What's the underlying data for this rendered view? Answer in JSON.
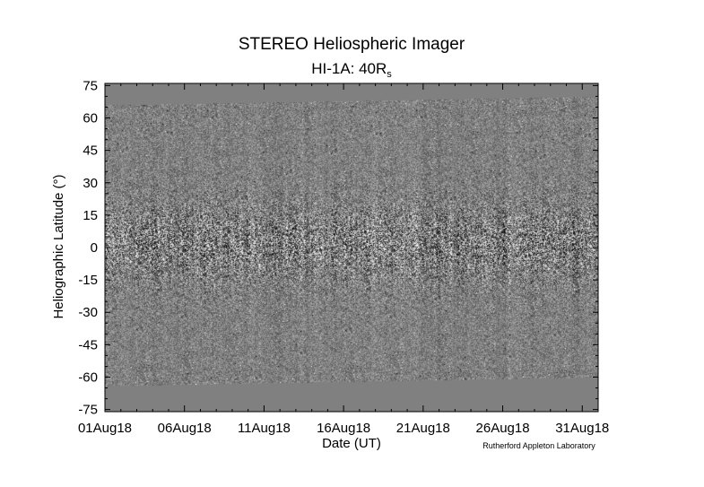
{
  "chart_data": {
    "type": "heatmap",
    "title": "STEREO Heliospheric Imager",
    "subtitle_main": "HI-1A: 40R",
    "subtitle_sub": "s",
    "xlabel": "Date (UT)",
    "ylabel": "Heliographic Latitude (°)",
    "credit": "Rutherford Appleton Laboratory",
    "x_ticks": [
      "01Aug18",
      "06Aug18",
      "11Aug18",
      "16Aug18",
      "21Aug18",
      "26Aug18",
      "31Aug18"
    ],
    "xlim_days": [
      1,
      32
    ],
    "y_ticks": [
      75,
      60,
      45,
      30,
      15,
      0,
      -15,
      -30,
      -45,
      -60,
      -75
    ],
    "ylim": [
      -76,
      76
    ],
    "data_lat_range_start": [
      66,
      -64
    ],
    "data_lat_range_end": [
      70,
      -60
    ],
    "colors": {
      "no_data": "#808080",
      "background": "#ffffff",
      "frame": "#000000"
    }
  }
}
